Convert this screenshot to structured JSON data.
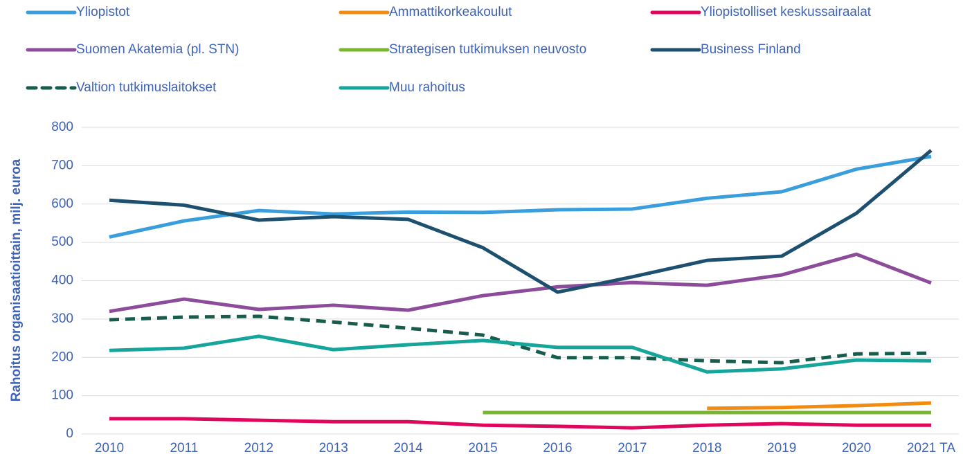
{
  "chart_data": {
    "type": "line",
    "y_label": "Rahoitus organisaatioittain, milj. euroa",
    "categories": [
      "2010",
      "2011",
      "2012",
      "2013",
      "2014",
      "2015",
      "2016",
      "2017",
      "2018",
      "2019",
      "2020",
      "2021 TA"
    ],
    "series": [
      {
        "name": "Yliopistot",
        "color": "#3a9ddc",
        "values": [
          514,
          556,
          583,
          574,
          579,
          578,
          585,
          587,
          615,
          632,
          691,
          724
        ]
      },
      {
        "name": "Ammattikorkeakoulut",
        "color": "#f28c10",
        "values": [
          null,
          null,
          null,
          null,
          null,
          null,
          null,
          null,
          67,
          69,
          74,
          81
        ]
      },
      {
        "name": "Yliopistolliset  keskussairaalat",
        "color": "#e0065c",
        "values": [
          40,
          40,
          36,
          32,
          32,
          23,
          20,
          16,
          23,
          27,
          23,
          23
        ]
      },
      {
        "name": "Suomen Akatemia (pl. STN)",
        "color": "#8d4b9b",
        "values": [
          320,
          352,
          325,
          336,
          323,
          361,
          384,
          395,
          388,
          415,
          469,
          394
        ]
      },
      {
        "name": "Strategisen tutkimuksen neuvosto",
        "color": "#79b531",
        "values": [
          null,
          null,
          null,
          null,
          null,
          56,
          56,
          56,
          56,
          56,
          56,
          56
        ]
      },
      {
        "name": "Business Finland",
        "color": "#1d4f6f",
        "values": [
          610,
          597,
          558,
          567,
          560,
          486,
          370,
          410,
          453,
          464,
          576,
          740
        ]
      },
      {
        "name": "Valtion tutkimuslaitokset",
        "color": "#175d4d",
        "dashed": true,
        "values": [
          298,
          305,
          307,
          292,
          276,
          258,
          199,
          199,
          191,
          186,
          209,
          211
        ]
      },
      {
        "name": "Muu rahoitus",
        "color": "#16a59a",
        "values": [
          218,
          224,
          255,
          220,
          233,
          244,
          226,
          226,
          162,
          170,
          193,
          191
        ]
      }
    ],
    "ylim": [
      0,
      800
    ],
    "yticks": [
      0,
      100,
      200,
      300,
      400,
      500,
      600,
      700,
      800
    ],
    "grid": true
  }
}
